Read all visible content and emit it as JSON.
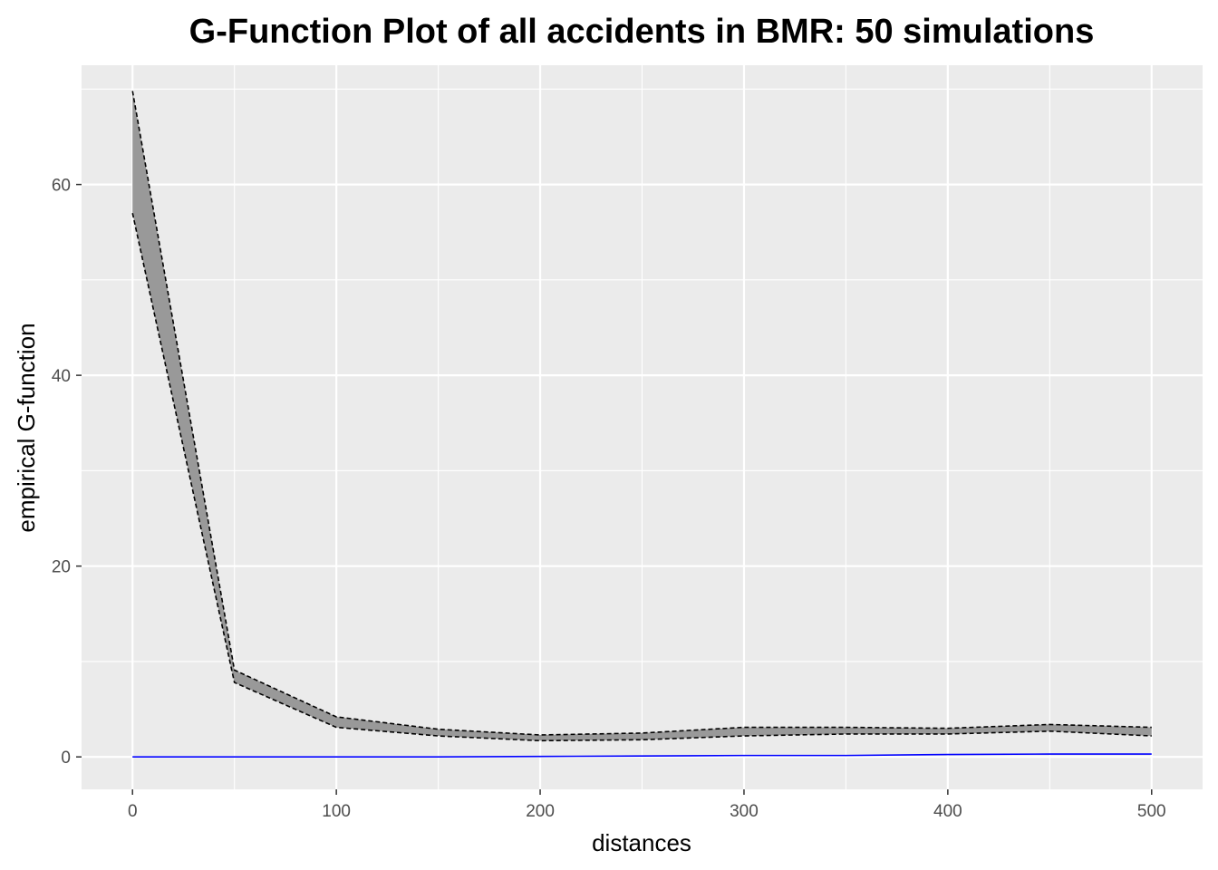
{
  "chart_data": {
    "type": "area",
    "title": "G-Function Plot of all accidents in BMR: 50 simulations",
    "xlabel": "distances",
    "ylabel": "empirical G-function",
    "xlim": [
      -25,
      525
    ],
    "ylim": [
      -3.4,
      72.5
    ],
    "x_ticks": [
      0,
      100,
      200,
      300,
      400,
      500
    ],
    "y_ticks": [
      0,
      20,
      40,
      60
    ],
    "x_tick_labels": [
      "0",
      "100",
      "200",
      "300",
      "400",
      "500"
    ],
    "y_tick_labels": [
      "0",
      "20",
      "40",
      "60"
    ],
    "grid": true,
    "legend": "none",
    "envelope": {
      "x": [
        0,
        50,
        100,
        150,
        200,
        250,
        300,
        350,
        400,
        450,
        500
      ],
      "upper": [
        69.8,
        9.1,
        4.2,
        2.9,
        2.3,
        2.5,
        3.1,
        3.1,
        3.0,
        3.4,
        3.1
      ],
      "lower": [
        57.0,
        7.8,
        3.1,
        2.2,
        1.7,
        1.8,
        2.2,
        2.4,
        2.4,
        2.7,
        2.2
      ]
    },
    "series": [
      {
        "x": [
          0,
          50,
          100,
          150,
          200,
          250,
          300,
          350,
          400,
          450,
          500
        ],
        "values": [
          0.0,
          0.0,
          0.0,
          0.0,
          0.05,
          0.1,
          0.15,
          0.15,
          0.25,
          0.3,
          0.3
        ]
      }
    ],
    "colors": {
      "panel": "#ebebeb",
      "grid_major": "#ffffff",
      "envelope_fill": "#999999",
      "envelope_line": "#000000",
      "observed_line": "#0000ff",
      "tick": "#333333"
    }
  }
}
